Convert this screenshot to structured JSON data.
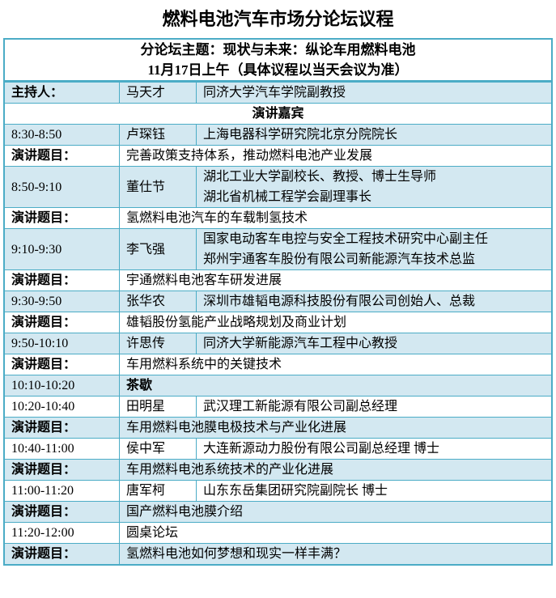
{
  "title": "燃料电池汽车市场分论坛议程",
  "colors": {
    "table_border": "#4BACC6",
    "shaded_row_bg": "#D3E8F1",
    "text": "#000000",
    "page_bg": "#FFFFFF"
  },
  "table": {
    "header": {
      "theme_line": "分论坛主题：现状与未来：纵论车用燃料电池",
      "date_line": "11月17日上午（具体议程以当天会议为准）"
    },
    "rows": [
      {
        "type": "host",
        "label": "主持人：",
        "name": "马天才",
        "desc": [
          "同济大学汽车学院副教授"
        ]
      },
      {
        "type": "section",
        "text": "演讲嘉宾"
      },
      {
        "type": "speaker",
        "label": "8:30-8:50",
        "name": "卢琛钰",
        "desc": [
          "上海电器科学研究院北京分院院长"
        ]
      },
      {
        "type": "topic",
        "label": "演讲题目：",
        "text": "完善政策支持体系，推动燃料电池产业发展"
      },
      {
        "type": "speaker",
        "label": "8:50-9:10",
        "name": "董仕节",
        "desc": [
          "湖北工业大学副校长、教授、博士生导师",
          "湖北省机械工程学会副理事长"
        ]
      },
      {
        "type": "topic",
        "label": "演讲题目：",
        "text": "氢燃料电池汽车的车载制氢技术"
      },
      {
        "type": "speaker",
        "label": "9:10-9:30",
        "name": "李飞强",
        "desc": [
          "国家电动客车电控与安全工程技术研究中心副主任",
          "郑州宇通客车股份有限公司新能源汽车技术总监"
        ]
      },
      {
        "type": "topic",
        "label": "演讲题目：",
        "text": "宇通燃料电池客车研发进展"
      },
      {
        "type": "speaker",
        "label": "9:30-9:50",
        "name": "张华农",
        "desc": [
          "深圳市雄韬电源科技股份有限公司创始人、总裁"
        ]
      },
      {
        "type": "topic",
        "label": "演讲题目：",
        "text": "雄韬股份氢能产业战略规划及商业计划"
      },
      {
        "type": "speaker",
        "label": "9:50-10:10",
        "name": "许思传",
        "desc": [
          "同济大学新能源汽车工程中心教授"
        ]
      },
      {
        "type": "topic",
        "label": "演讲题目：",
        "text": "车用燃料系统中的关键技术"
      },
      {
        "type": "break",
        "label": "10:10-10:20",
        "text": "茶歇"
      },
      {
        "type": "speaker",
        "label": "10:20-10:40",
        "name": "田明星",
        "desc": [
          "武汉理工新能源有限公司副总经理"
        ]
      },
      {
        "type": "topic",
        "label": "演讲题目：",
        "text": "车用燃料电池膜电极技术与产业化进展"
      },
      {
        "type": "speaker",
        "label": "10:40-11:00",
        "name": "侯中军",
        "desc": [
          "大连新源动力股份有限公司副总经理 博士"
        ]
      },
      {
        "type": "topic",
        "label": "演讲题目：",
        "text": "车用燃料电池系统技术的产业化进展"
      },
      {
        "type": "speaker",
        "label": "11:00-11:20",
        "name": "唐军柯",
        "desc": [
          "山东东岳集团研究院副院长 博士"
        ]
      },
      {
        "type": "topic",
        "label": "演讲题目：",
        "text": "国产燃料电池膜介绍"
      },
      {
        "type": "roundtable",
        "label": "11:20-12:00",
        "text": "圆桌论坛"
      },
      {
        "type": "topic",
        "label": "演讲题目：",
        "text": "氢燃料电池如何梦想和现实一样丰满？"
      }
    ]
  }
}
